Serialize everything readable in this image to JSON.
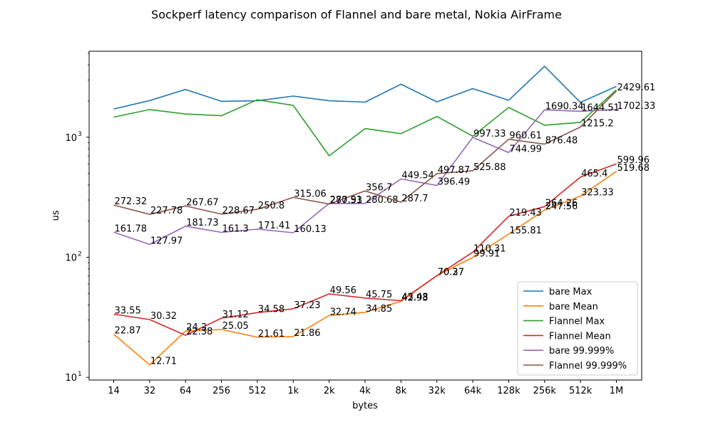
{
  "chart_data": {
    "type": "line",
    "title": "Sockperf latency comparison of Flannel and bare metal, Nokia AirFrame",
    "xlabel": "bytes",
    "ylabel": "us",
    "yscale": "log",
    "ylim": [
      9.5,
      5200
    ],
    "y_ticks": [
      {
        "value": 10,
        "label": "10",
        "sup": "1"
      },
      {
        "value": 100,
        "label": "10",
        "sup": "2"
      },
      {
        "value": 1000,
        "label": "10",
        "sup": "3"
      }
    ],
    "categories": [
      "14",
      "32",
      "64",
      "256",
      "512",
      "1k",
      "2k",
      "4k",
      "8k",
      "32k",
      "64k",
      "128k",
      "256k",
      "512k",
      "1M"
    ],
    "legend_position": "lower right",
    "grid": false,
    "series": [
      {
        "name": "bare Max",
        "color": "#1f77b4",
        "values": [
          1720,
          2020,
          2500,
          1990,
          2010,
          2200,
          2010,
          1960,
          2760,
          1970,
          2540,
          2030,
          3900,
          1950,
          2650
        ],
        "labeled": false
      },
      {
        "name": "bare Mean",
        "color": "#ff7f0e",
        "values": [
          22.87,
          12.71,
          24.3,
          25.05,
          21.61,
          21.86,
          32.74,
          34.85,
          42.93,
          70.37,
          99.91,
          155.81,
          247.56,
          323.33,
          519.68
        ],
        "labels": [
          "22.87",
          "12.71",
          "24.3",
          "25.05",
          "21.61",
          "21.86",
          "32.74",
          "34.85",
          "42.93",
          "70.37",
          "99.91",
          "155.81",
          "247.56",
          "323.33",
          "519.68"
        ],
        "labeled": true
      },
      {
        "name": "Flannel Max",
        "color": "#2ca02c",
        "values": [
          1470,
          1700,
          1560,
          1510,
          2050,
          1840,
          700,
          1180,
          1070,
          1490,
          1020,
          1770,
          1260,
          1330,
          2480
        ],
        "labeled": false
      },
      {
        "name": "Flannel Mean",
        "color": "#d62728",
        "values": [
          33.55,
          30.32,
          22.38,
          31.12,
          34.58,
          37.23,
          49.56,
          45.75,
          43.48,
          70.27,
          110.31,
          219.43,
          264.26,
          465.4,
          599.96
        ],
        "labels": [
          "33.55",
          "30.32",
          "22.38",
          "31.12",
          "34.58",
          "37.23",
          "49.56",
          "45.75",
          "43.48",
          "70.27",
          "110.31",
          "219.43",
          "264.26",
          "465.4",
          "599.96"
        ],
        "labeled": true
      },
      {
        "name": "bare 99.999%",
        "color": "#9467bd",
        "values": [
          161.78,
          127.97,
          181.73,
          161.3,
          171.41,
          160.13,
          280.91,
          280.68,
          449.54,
          396.49,
          997.33,
          744.99,
          1690.34,
          1644.51,
          1702.33
        ],
        "labels": [
          "161.78",
          "127.97",
          "181.73",
          "161.3",
          "171.41",
          "160.13",
          "280.91",
          "280.68",
          "449.54",
          "396.49",
          "997.33",
          "744.99",
          "1690.34",
          "1644.51",
          "1702.33"
        ],
        "labeled": true
      },
      {
        "name": "Flannel 99.999%",
        "color": "#8c564b",
        "values": [
          272.32,
          227.78,
          267.67,
          228.67,
          250.8,
          315.06,
          277.53,
          356.7,
          287.7,
          497.87,
          525.88,
          960.61,
          876.48,
          1215.2,
          2429.61
        ],
        "labels": [
          "272.32",
          "227.78",
          "267.67",
          "228.67",
          "250.8",
          "315.06",
          "277.53",
          "356.7",
          "287.7",
          "497.87",
          "525.88",
          "960.61",
          "876.48",
          "1215.2",
          "2429.61"
        ],
        "labeled": true
      }
    ]
  }
}
